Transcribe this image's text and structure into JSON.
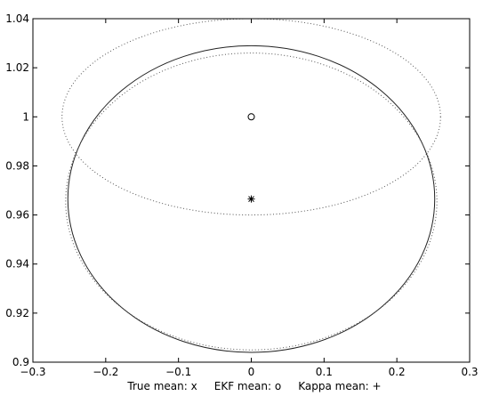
{
  "chart_data": {
    "type": "scatter",
    "title": "",
    "xlabel": "True mean: x     EKF mean: o     Kappa mean: +",
    "ylabel": "",
    "xlim": [
      -0.3,
      0.3
    ],
    "ylim": [
      0.9,
      1.04
    ],
    "x_ticks": [
      -0.3,
      -0.2,
      -0.1,
      0,
      0.1,
      0.2,
      0.3
    ],
    "x_tick_labels": [
      "−0.3",
      "−0.2",
      "−0.1",
      "0",
      "0.1",
      "0.2",
      "0.3"
    ],
    "y_ticks": [
      0.9,
      0.92,
      0.94,
      0.96,
      0.98,
      1.0,
      1.02,
      1.04
    ],
    "y_tick_labels": [
      "0.9",
      "0.92",
      "0.94",
      "0.96",
      "0.98",
      "1",
      "1.02",
      "1.04"
    ],
    "grid": false,
    "points": [
      {
        "name": "EKF mean",
        "marker": "o",
        "x": 0,
        "y": 1.0
      },
      {
        "name": "True mean",
        "marker": "x",
        "x": 0,
        "y": 0.9665
      },
      {
        "name": "Kappa mean",
        "marker": "+",
        "x": 0,
        "y": 0.9665
      }
    ],
    "ellipses": [
      {
        "style": "dotted",
        "cx": 0,
        "cy": 1.0,
        "rx": 0.26,
        "ry": 0.04,
        "color": "#555555"
      },
      {
        "style": "solid",
        "cx": 0,
        "cy": 0.9665,
        "rx": 0.252,
        "ry": 0.0625,
        "color": "#222222"
      },
      {
        "style": "dotted",
        "cx": 0,
        "cy": 0.9655,
        "rx": 0.255,
        "ry": 0.0605,
        "color": "#555555"
      }
    ]
  }
}
